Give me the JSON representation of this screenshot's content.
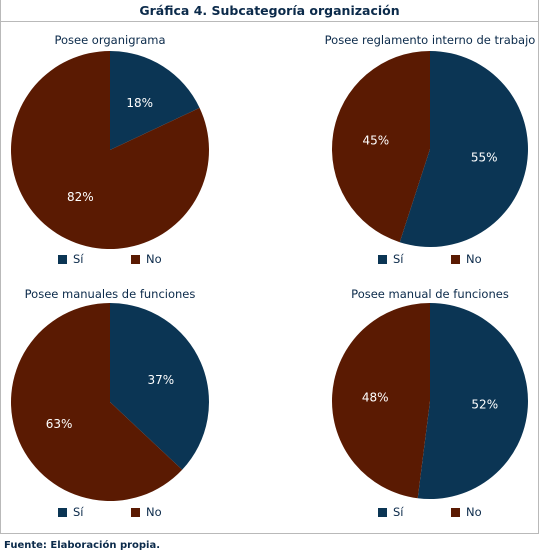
{
  "header": {
    "title": "Gráfica 4. Subcategoría organización"
  },
  "footer": {
    "source": "Fuente: Elaboración propia."
  },
  "colors": {
    "si": "#0b3554",
    "no": "#5a1a02"
  },
  "legend": {
    "si": "Sí",
    "no": "No"
  },
  "chart_data": [
    {
      "type": "pie",
      "title": "Posee organigrama",
      "categories": [
        "Sí",
        "No"
      ],
      "values": [
        18,
        82
      ],
      "labels": [
        "18%",
        "82%"
      ]
    },
    {
      "type": "pie",
      "title": "Posee reglamento interno de trabajo",
      "categories": [
        "Sí",
        "No"
      ],
      "values": [
        55,
        45
      ],
      "labels": [
        "55%",
        "45%"
      ]
    },
    {
      "type": "pie",
      "title": "Posee manuales de funciones",
      "categories": [
        "Sí",
        "No"
      ],
      "values": [
        37,
        63
      ],
      "labels": [
        "37%",
        "63%"
      ]
    },
    {
      "type": "pie",
      "title": "Posee manual de funciones",
      "categories": [
        "Sí",
        "No"
      ],
      "values": [
        52,
        48
      ],
      "labels": [
        "52%",
        "48%"
      ]
    }
  ]
}
